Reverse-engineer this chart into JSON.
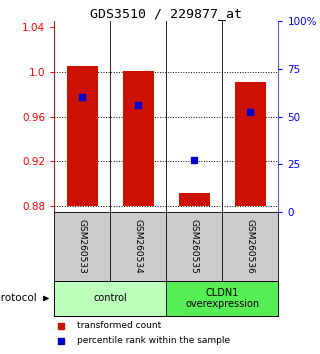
{
  "title": "GDS3510 / 229877_at",
  "samples": [
    "GSM260533",
    "GSM260534",
    "GSM260535",
    "GSM260536"
  ],
  "bar_bottoms": [
    0.88,
    0.88,
    0.88,
    0.88
  ],
  "bar_tops": [
    1.005,
    1.001,
    0.892,
    0.991
  ],
  "percentile_values": [
    0.977,
    0.97,
    0.921,
    0.964
  ],
  "ylim_left": [
    0.875,
    1.045
  ],
  "ylim_right": [
    0,
    100
  ],
  "yticks_left": [
    0.88,
    0.92,
    0.96,
    1.0,
    1.04
  ],
  "yticks_right": [
    0,
    25,
    50,
    75,
    100
  ],
  "ytick_labels_right": [
    "0",
    "25",
    "50",
    "75",
    "100%"
  ],
  "grid_lines": [
    1.0,
    0.96,
    0.92,
    0.88
  ],
  "bar_color": "#cc1100",
  "marker_color": "#0000cc",
  "group_data": [
    {
      "label": "control",
      "xmin": 0,
      "xmax": 2,
      "color": "#bbffbb"
    },
    {
      "label": "CLDN1\noverexpression",
      "xmin": 2,
      "xmax": 4,
      "color": "#55ee55"
    }
  ],
  "protocol_label": "protocol",
  "legend_items": [
    {
      "label": "transformed count",
      "color": "#cc1100"
    },
    {
      "label": "percentile rank within the sample",
      "color": "#0000cc"
    }
  ],
  "sample_box_color": "#cccccc",
  "bar_width": 0.55
}
